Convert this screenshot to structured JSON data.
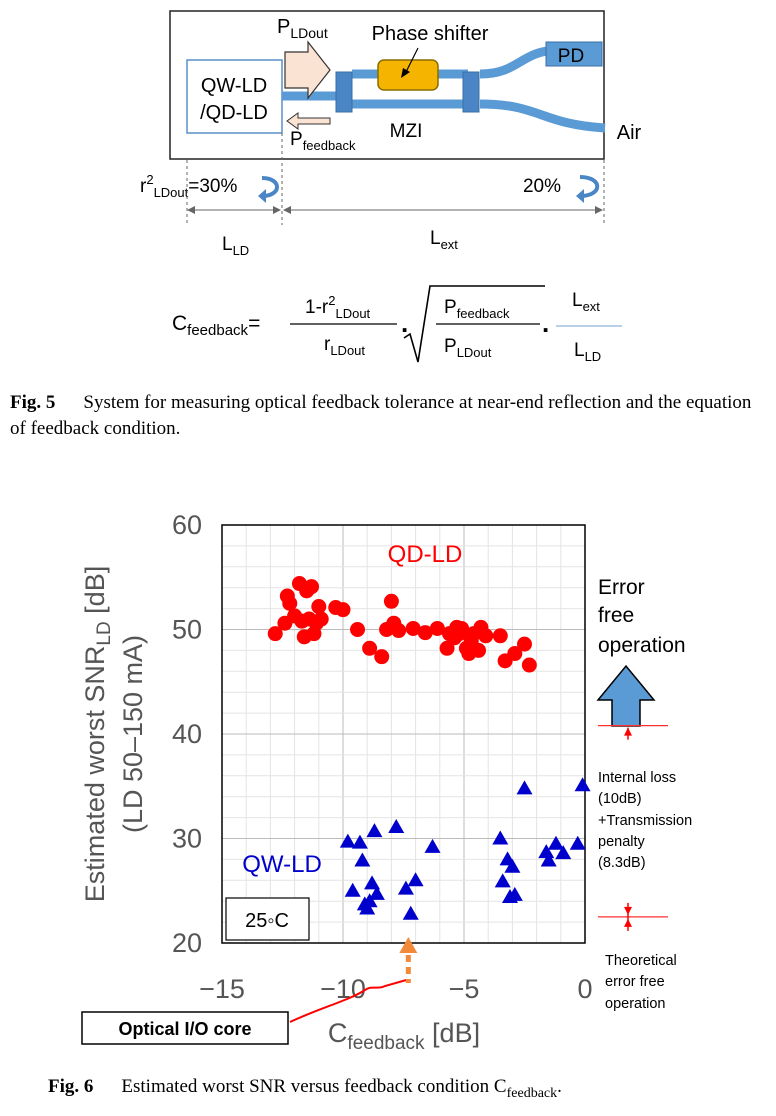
{
  "fig5": {
    "ld_box": [
      "QW-LD",
      "/QD-LD"
    ],
    "p_ldout": {
      "main": "P",
      "sub": "LDout"
    },
    "phase_shifter": "Phase shifter",
    "pd": "PD",
    "air": "Air",
    "mzi": "MZI",
    "p_feedback": {
      "main": "P",
      "sub": "feedback"
    },
    "r2_label": {
      "main": "r",
      "sup": "2",
      "sub": "LDout",
      "value": "=30%"
    },
    "reflect_right": "20%",
    "l_ld": {
      "main": "L",
      "sub": "LD"
    },
    "l_ext": {
      "main": "L",
      "sub": "ext"
    },
    "equation": {
      "lhs_main": "C",
      "lhs_sub": "feedback",
      "eq": "=",
      "f1_num_a": "1-r",
      "f1_num_sup": "2",
      "f1_num_sub": "LDout",
      "f1_den_main": "r",
      "f1_den_sub": "LDout",
      "f2_num_main": "P",
      "f2_num_sub": "feedback",
      "f2_den_main": "P",
      "f2_den_sub": "LDout",
      "f3_num_main": "L",
      "f3_num_sub": "ext",
      "f3_den_main": "L",
      "f3_den_sub": "LD",
      "dot": "."
    },
    "caption_label": "Fig. 5",
    "caption_text": "System for measuring optical feedback tolerance at near-end reflection and the equation of feedback condition."
  },
  "fig6": {
    "caption_label": "Fig. 6",
    "caption_text": "Estimated worst SNR versus feedback condition C",
    "caption_sub": "feedback",
    "caption_end": "."
  },
  "chart_data": {
    "type": "scatter",
    "ylabel_main": "Estimated worst SNR",
    "ylabel_sub": "LD",
    "ylabel_unit": " [dB]",
    "ylabel_line2": "(LD 50–150 mA)",
    "xlabel_main": "C",
    "xlabel_sub": "feedback",
    "xlabel_unit": " [dB]",
    "xlim": [
      -15,
      0
    ],
    "ylim": [
      20,
      60
    ],
    "xticks": [
      -15,
      -10,
      -5,
      0
    ],
    "xtick_labels": [
      "−15",
      "−10",
      "−5",
      "0"
    ],
    "yticks": [
      20,
      30,
      40,
      50,
      60
    ],
    "ytick_labels": [
      "20",
      "30",
      "40",
      "50",
      "60"
    ],
    "grid": true,
    "temperature_label": "25◦C",
    "annotations": {
      "error_free": [
        "Error",
        "free",
        "operation"
      ],
      "internal_loss": [
        "Internal loss",
        "(10dB)",
        "+Transmission",
        "penalty",
        "(8.3dB)"
      ],
      "theoretical": [
        "Theoretical",
        "error free",
        "operation"
      ],
      "optical_io": "Optical I/O core",
      "optical_io_x": -7.3
    },
    "levels": {
      "required": 40.8,
      "theoretical": 22.5
    },
    "colors": {
      "qd": "#ff0000",
      "qw": "#0000cc",
      "arrow": "#5b9bd5",
      "marker": "#f28a3a"
    },
    "series": [
      {
        "name": "QD-LD",
        "marker": "circle",
        "points": [
          [
            -12.8,
            49.6
          ],
          [
            -12.4,
            50.6
          ],
          [
            -12.3,
            53.2
          ],
          [
            -12.2,
            52.5
          ],
          [
            -12.0,
            51.3
          ],
          [
            -11.8,
            54.4
          ],
          [
            -11.7,
            50.8
          ],
          [
            -11.6,
            49.3
          ],
          [
            -11.5,
            53.7
          ],
          [
            -11.4,
            51.0
          ],
          [
            -11.3,
            54.1
          ],
          [
            -11.2,
            49.6
          ],
          [
            -11.1,
            50.6
          ],
          [
            -11.0,
            52.2
          ],
          [
            -10.9,
            51.0
          ],
          [
            -10.3,
            52.1
          ],
          [
            -10.0,
            51.9
          ],
          [
            -9.4,
            50.0
          ],
          [
            -8.9,
            48.2
          ],
          [
            -8.4,
            47.4
          ],
          [
            -8.2,
            50.0
          ],
          [
            -8.0,
            52.7
          ],
          [
            -7.9,
            50.6
          ],
          [
            -7.7,
            49.9
          ],
          [
            -7.1,
            50.1
          ],
          [
            -6.6,
            49.7
          ],
          [
            -6.1,
            50.1
          ],
          [
            -5.7,
            48.2
          ],
          [
            -5.6,
            49.6
          ],
          [
            -5.4,
            49.2
          ],
          [
            -5.3,
            50.2
          ],
          [
            -5.2,
            49.6
          ],
          [
            -5.1,
            50.1
          ],
          [
            -4.9,
            48.2
          ],
          [
            -4.8,
            47.7
          ],
          [
            -4.7,
            48.9
          ],
          [
            -4.6,
            49.6
          ],
          [
            -4.4,
            48.0
          ],
          [
            -4.3,
            50.2
          ],
          [
            -4.1,
            49.4
          ],
          [
            -3.5,
            49.4
          ],
          [
            -3.3,
            47.0
          ],
          [
            -2.9,
            47.7
          ],
          [
            -2.5,
            48.6
          ],
          [
            -2.3,
            46.6
          ]
        ]
      },
      {
        "name": "QW-LD",
        "marker": "triangle",
        "points": [
          [
            -9.8,
            29.7
          ],
          [
            -9.6,
            25.0
          ],
          [
            -9.3,
            29.6
          ],
          [
            -9.2,
            27.9
          ],
          [
            -9.1,
            23.7
          ],
          [
            -9.0,
            23.3
          ],
          [
            -8.9,
            24.0
          ],
          [
            -8.8,
            25.7
          ],
          [
            -8.7,
            30.7
          ],
          [
            -8.6,
            24.7
          ],
          [
            -7.8,
            31.1
          ],
          [
            -7.4,
            25.2
          ],
          [
            -7.2,
            22.8
          ],
          [
            -7.0,
            26.0
          ],
          [
            -6.3,
            29.2
          ],
          [
            -3.5,
            30.0
          ],
          [
            -3.4,
            25.9
          ],
          [
            -3.2,
            28.0
          ],
          [
            -3.1,
            24.4
          ],
          [
            -3.0,
            27.3
          ],
          [
            -2.9,
            24.6
          ],
          [
            -2.5,
            34.8
          ],
          [
            -1.6,
            28.7
          ],
          [
            -1.5,
            27.9
          ],
          [
            -1.2,
            29.5
          ],
          [
            -0.9,
            28.6
          ],
          [
            -0.3,
            29.5
          ],
          [
            -0.1,
            35.1
          ]
        ]
      }
    ]
  }
}
